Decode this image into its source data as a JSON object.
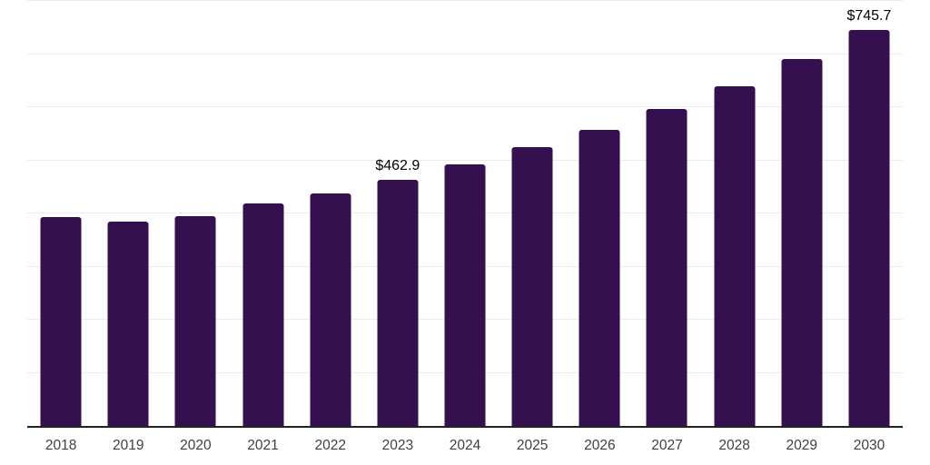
{
  "chart_data": {
    "type": "bar",
    "title": "",
    "xlabel": "",
    "ylabel": "",
    "categories": [
      "2018",
      "2019",
      "2020",
      "2021",
      "2022",
      "2023",
      "2024",
      "2025",
      "2026",
      "2027",
      "2028",
      "2029",
      "2030"
    ],
    "values": [
      394.0,
      384.5,
      395.5,
      419.5,
      437.0,
      462.9,
      491.5,
      524.0,
      558.0,
      597.0,
      639.5,
      691.0,
      745.7
    ],
    "data_labels": {
      "2023": "$462.9",
      "2030": "$745.7"
    },
    "unit_prefix": "$",
    "ylim": [
      0,
      800
    ],
    "gridline_step": 100,
    "grid": true,
    "y_axis_tick_labels_visible": false,
    "legend_position": "none",
    "colors": {
      "bar": "#35104e",
      "grid": "#ececec",
      "axis": "#222222",
      "tick_text": "#404040",
      "data_label_text": "#000000",
      "background": "#ffffff"
    }
  }
}
